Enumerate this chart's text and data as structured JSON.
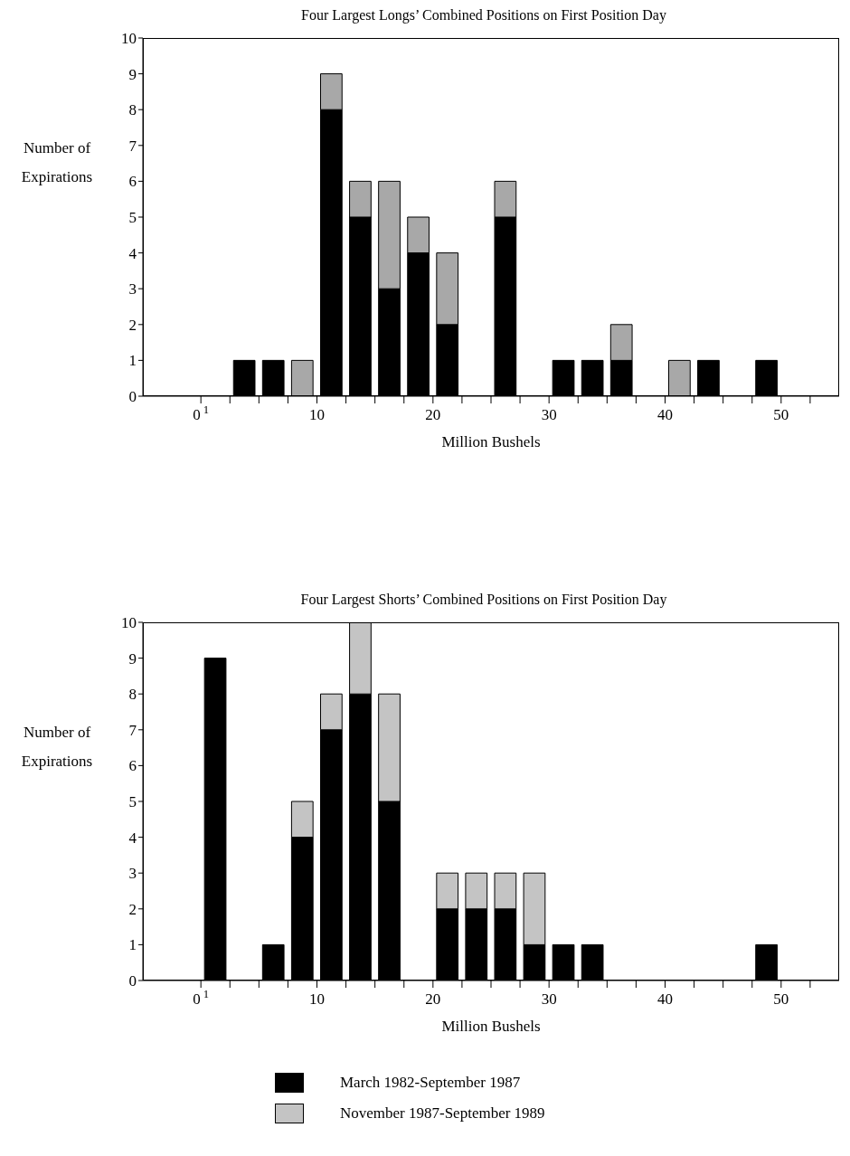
{
  "chart_data": [
    {
      "type": "bar",
      "title": "Four Largest Longs’ Combined Positions on First Position Day",
      "xlabel": "Million Bushels",
      "ylabel": "Number of Expirations",
      "stacked": true,
      "x": [
        1.25,
        3.75,
        6.25,
        8.75,
        11.25,
        13.75,
        16.25,
        18.75,
        21.25,
        23.75,
        26.25,
        28.75,
        31.25,
        33.75,
        36.25,
        38.75,
        41.25,
        43.75,
        46.25,
        48.75
      ],
      "series": [
        {
          "color": "#000000",
          "values": [
            0,
            1,
            1,
            0,
            8,
            5,
            3,
            4,
            2,
            0,
            5,
            0,
            1,
            1,
            1,
            0,
            0,
            1,
            0,
            1
          ]
        },
        {
          "color": "#a8a8a8",
          "values": [
            0,
            0,
            0,
            1,
            1,
            1,
            3,
            1,
            2,
            0,
            1,
            0,
            0,
            0,
            1,
            0,
            1,
            0,
            0,
            0
          ]
        }
      ],
      "xlim": [
        -5,
        55
      ],
      "xticks": [
        {
          "value": 0,
          "label": "0$^{1}$"
        },
        {
          "value": 2.5,
          "label": null
        },
        {
          "value": 5,
          "label": null
        },
        {
          "value": 7.5,
          "label": null
        },
        10,
        {
          "value": 12.5,
          "label": null
        },
        {
          "value": 15,
          "label": null
        },
        {
          "value": 17.5,
          "label": null
        },
        20,
        {
          "value": 22.5,
          "label": null
        },
        {
          "value": 25,
          "label": null
        },
        {
          "value": 27.5,
          "label": null
        },
        30,
        {
          "value": 32.5,
          "label": null
        },
        {
          "value": 35,
          "label": null
        },
        {
          "value": 37.5,
          "label": null
        },
        40,
        {
          "value": 42.5,
          "label": null
        },
        {
          "value": 45,
          "label": null
        },
        {
          "value": 47.5,
          "label": null
        },
        50,
        {
          "value": 52.5,
          "label": null
        }
      ],
      "ylim": [
        0,
        10
      ],
      "yticks": [
        0,
        1,
        2,
        3,
        4,
        5,
        6,
        7,
        8,
        9,
        10
      ],
      "grid": false
    },
    {
      "type": "bar",
      "title": "Four Largest Shorts’ Combined Positions on First Position Day",
      "xlabel": "Million Bushels",
      "ylabel": "Number of Expirations",
      "stacked": true,
      "legend": "bottom",
      "x": [
        1.25,
        3.75,
        6.25,
        8.75,
        11.25,
        13.75,
        16.25,
        18.75,
        21.25,
        23.75,
        26.25,
        28.75,
        31.25,
        33.75,
        36.25,
        38.75,
        41.25,
        43.75,
        46.25,
        48.75
      ],
      "series": [
        {
          "name": "March 1982-September 1987",
          "color": "#000000",
          "values": [
            9,
            0,
            1,
            4,
            7,
            8,
            5,
            0,
            2,
            2,
            2,
            1,
            1,
            1,
            0,
            0,
            0,
            0,
            0,
            1
          ]
        },
        {
          "name": "November 1987-September 1989",
          "color": "#c4c4c4",
          "values": [
            0,
            0,
            0,
            1,
            1,
            2,
            3,
            0,
            1,
            1,
            1,
            2,
            0,
            0,
            0,
            0,
            0,
            0,
            0,
            0
          ]
        }
      ],
      "xlim": [
        -5,
        55
      ],
      "xticks": [
        {
          "value": 0,
          "label": "0$^{1}$"
        },
        {
          "value": 2.5,
          "label": null
        },
        {
          "value": 5,
          "label": null
        },
        {
          "value": 7.5,
          "label": null
        },
        10,
        {
          "value": 12.5,
          "label": null
        },
        {
          "value": 15,
          "label": null
        },
        {
          "value": 17.5,
          "label": null
        },
        20,
        {
          "value": 22.5,
          "label": null
        },
        {
          "value": 25,
          "label": null
        },
        {
          "value": 27.5,
          "label": null
        },
        30,
        {
          "value": 32.5,
          "label": null
        },
        {
          "value": 35,
          "label": null
        },
        {
          "value": 37.5,
          "label": null
        },
        40,
        {
          "value": 42.5,
          "label": null
        },
        {
          "value": 45,
          "label": null
        },
        {
          "value": 47.5,
          "label": null
        },
        50,
        {
          "value": 52.5,
          "label": null
        }
      ],
      "ylim": [
        0,
        10
      ],
      "yticks": [
        0,
        1,
        2,
        3,
        4,
        5,
        6,
        7,
        8,
        9,
        10
      ],
      "grid": false
    }
  ]
}
